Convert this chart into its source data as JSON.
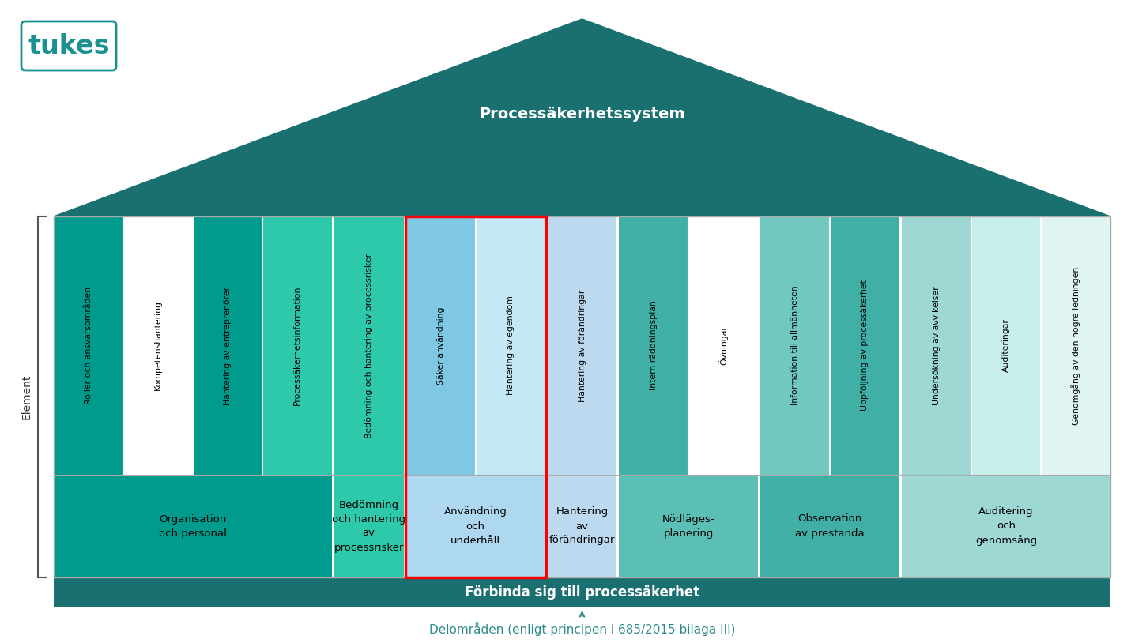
{
  "title": "Processäkerhetssystem",
  "bottom_label": "Förbinda sig till processäkerhet",
  "footer_label": "Delområden (enligt principen i 685/2015 bilaga III)",
  "element_label": "Element",
  "roof_color": "#1a7070",
  "roof_text_color": "#ffffff",
  "bottom_bar_color": "#1a7070",
  "bottom_bar_text_color": "#ffffff",
  "footer_text_color": "#2e8b8b",
  "bg_color": "#ffffff",
  "columns": [
    {
      "group": "Organisation\noch personal",
      "group_color": "#009B8D",
      "elements": [
        {
          "label": "Roller och ansvarsområden",
          "color": "#009B8D"
        },
        {
          "label": "Kompetenshantering",
          "color": "#ffffff"
        },
        {
          "label": "Hantering av entreprenörer",
          "color": "#009B8D"
        },
        {
          "label": "Processäkerhetsinformation",
          "color": "#2DC9AA"
        }
      ]
    },
    {
      "group": "Bedömning\noch hantering\nav\nprocessrisker",
      "group_color": "#2DC9AA",
      "elements": [
        {
          "label": "Bedömning och hantering av processrisker",
          "color": "#2DC9AA"
        }
      ]
    },
    {
      "group": "Användning\noch\nunderhåll",
      "group_color": "#ADD8F0",
      "highlight": true,
      "elements": [
        {
          "label": "Säker användning",
          "color": "#7EC8E3"
        },
        {
          "label": "Hantering av egendom",
          "color": "#C5E8F7"
        }
      ]
    },
    {
      "group": "Hantering\nav\nförändringar",
      "group_color": "#BDD9F0",
      "elements": [
        {
          "label": "Hantering av förändringar",
          "color": "#BDD9F0"
        }
      ]
    },
    {
      "group": "Nödläges-\nplanering",
      "group_color": "#5BBFB5",
      "elements": [
        {
          "label": "Intern räddningsplan",
          "color": "#40B0A6"
        },
        {
          "label": "Övningar",
          "color": "#ffffff"
        }
      ]
    },
    {
      "group": "Observation\nav prestanda",
      "group_color": "#40B0A6",
      "elements": [
        {
          "label": "Information till allmänheten",
          "color": "#70C8BF"
        },
        {
          "label": "Uppföljning av processäkerhet",
          "color": "#40B0A6"
        }
      ]
    },
    {
      "group": "Auditering\noch\ngenomsång",
      "group_color": "#9ED8D4",
      "elements": [
        {
          "label": "Undersökning av avvikelser",
          "color": "#9ED8D4"
        },
        {
          "label": "Auditeringar",
          "color": "#C8EEEB"
        },
        {
          "label": "Genomgång av den högre ledningen",
          "color": "#E0F5F3"
        }
      ]
    }
  ]
}
